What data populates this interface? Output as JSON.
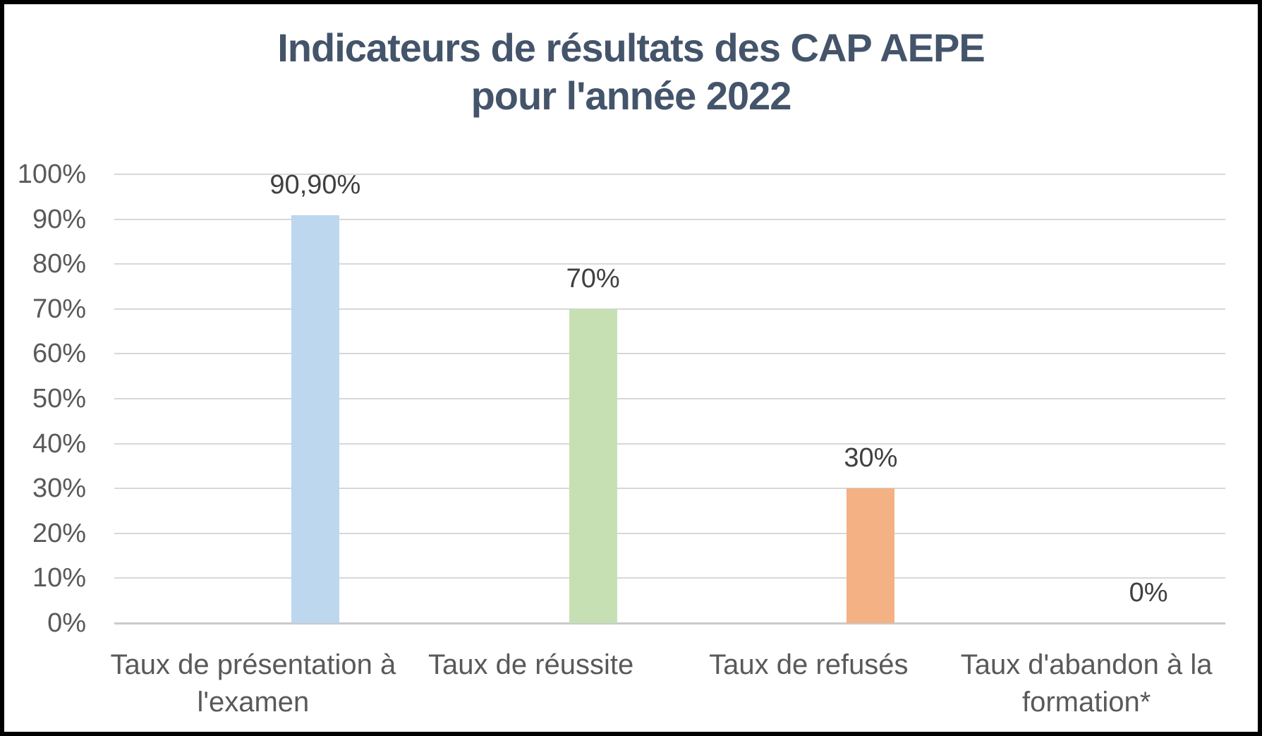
{
  "title": {
    "line1": "Indicateurs de résultats des CAP AEPE",
    "line2": "pour l'année 2022",
    "color": "#44546A"
  },
  "chart_data": {
    "type": "bar",
    "title": "Indicateurs de résultats des CAP AEPE pour l'année 2022",
    "categories": [
      "Taux de présentation à l'examen",
      "Taux de réussite",
      "Taux de refusés",
      "Taux d'abandon à la formation*"
    ],
    "category_label_lines": [
      [
        "Taux de présentation à",
        "l'examen"
      ],
      [
        "Taux de réussite"
      ],
      [
        "Taux de refusés"
      ],
      [
        "Taux d'abandon à la",
        "formation*"
      ]
    ],
    "values": [
      90.9,
      70,
      30,
      0
    ],
    "value_labels": [
      "90,90%",
      "70%",
      "30%",
      "0%"
    ],
    "bar_colors": [
      "#BDD7EE",
      "#C6E0B4",
      "#F4B183",
      null
    ],
    "xlabel": "",
    "ylabel": "",
    "ylim": [
      0,
      100
    ],
    "y_tick_values": [
      100,
      90,
      80,
      70,
      60,
      50,
      40,
      30,
      20,
      10,
      0
    ],
    "y_tick_labels": [
      "100%",
      "90%",
      "80%",
      "70%",
      "60%",
      "50%",
      "40%",
      "30%",
      "20%",
      "10%",
      "0%"
    ],
    "grid": true,
    "legend": "none",
    "data_label_color": "#404040",
    "axis_label_color": "#595959",
    "gridline_color": "#d8d8d8"
  }
}
